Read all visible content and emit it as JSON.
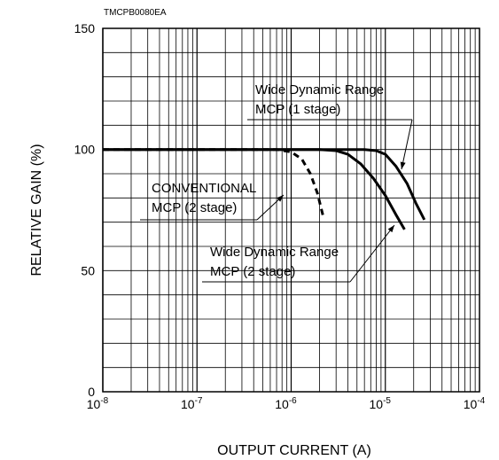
{
  "chart_data": {
    "type": "line",
    "code": "TMCPB0080EA",
    "xlabel": "OUTPUT CURRENT (A)",
    "ylabel": "RELATIVE GAIN (%)",
    "xscale": "log",
    "xlim": [
      1e-08,
      0.0001
    ],
    "ylim": [
      0,
      150
    ],
    "grid": true,
    "x_ticks": [
      {
        "base": "10",
        "exp": "-8",
        "value": 1e-08
      },
      {
        "base": "10",
        "exp": "-7",
        "value": 1e-07
      },
      {
        "base": "10",
        "exp": "-6",
        "value": 1e-06
      },
      {
        "base": "10",
        "exp": "-5",
        "value": 1e-05
      },
      {
        "base": "10",
        "exp": "-4",
        "value": 0.0001
      }
    ],
    "y_ticks": [
      "0",
      "50",
      "100",
      "150"
    ],
    "series": [
      {
        "label_lines": [
          "CONVENTIONAL",
          "MCP (2 stage)"
        ],
        "dashed": true,
        "points": [
          [
            1e-08,
            100
          ],
          [
            5e-07,
            100
          ],
          [
            7e-07,
            100
          ],
          [
            1e-06,
            99
          ],
          [
            1.3e-06,
            96
          ],
          [
            1.6e-06,
            90
          ],
          [
            1.9e-06,
            82
          ],
          [
            2.2e-06,
            72
          ]
        ]
      },
      {
        "label_lines": [
          "Wide Dynamic Range",
          "MCP (2 stage)"
        ],
        "dashed": false,
        "points": [
          [
            1e-08,
            100
          ],
          [
            2e-06,
            100
          ],
          [
            3e-06,
            99.5
          ],
          [
            4e-06,
            98
          ],
          [
            5.5e-06,
            94
          ],
          [
            7.5e-06,
            88
          ],
          [
            1e-05,
            81
          ],
          [
            1.3e-05,
            73
          ],
          [
            1.6e-05,
            67
          ]
        ]
      },
      {
        "label_lines": [
          "Wide Dynamic Range",
          "MCP (1 stage)"
        ],
        "dashed": false,
        "points": [
          [
            1e-08,
            100
          ],
          [
            6e-06,
            100
          ],
          [
            8e-06,
            99.5
          ],
          [
            1e-05,
            98
          ],
          [
            1.3e-05,
            93
          ],
          [
            1.7e-05,
            86
          ],
          [
            2.1e-05,
            78
          ],
          [
            2.6e-05,
            71
          ]
        ]
      }
    ]
  }
}
